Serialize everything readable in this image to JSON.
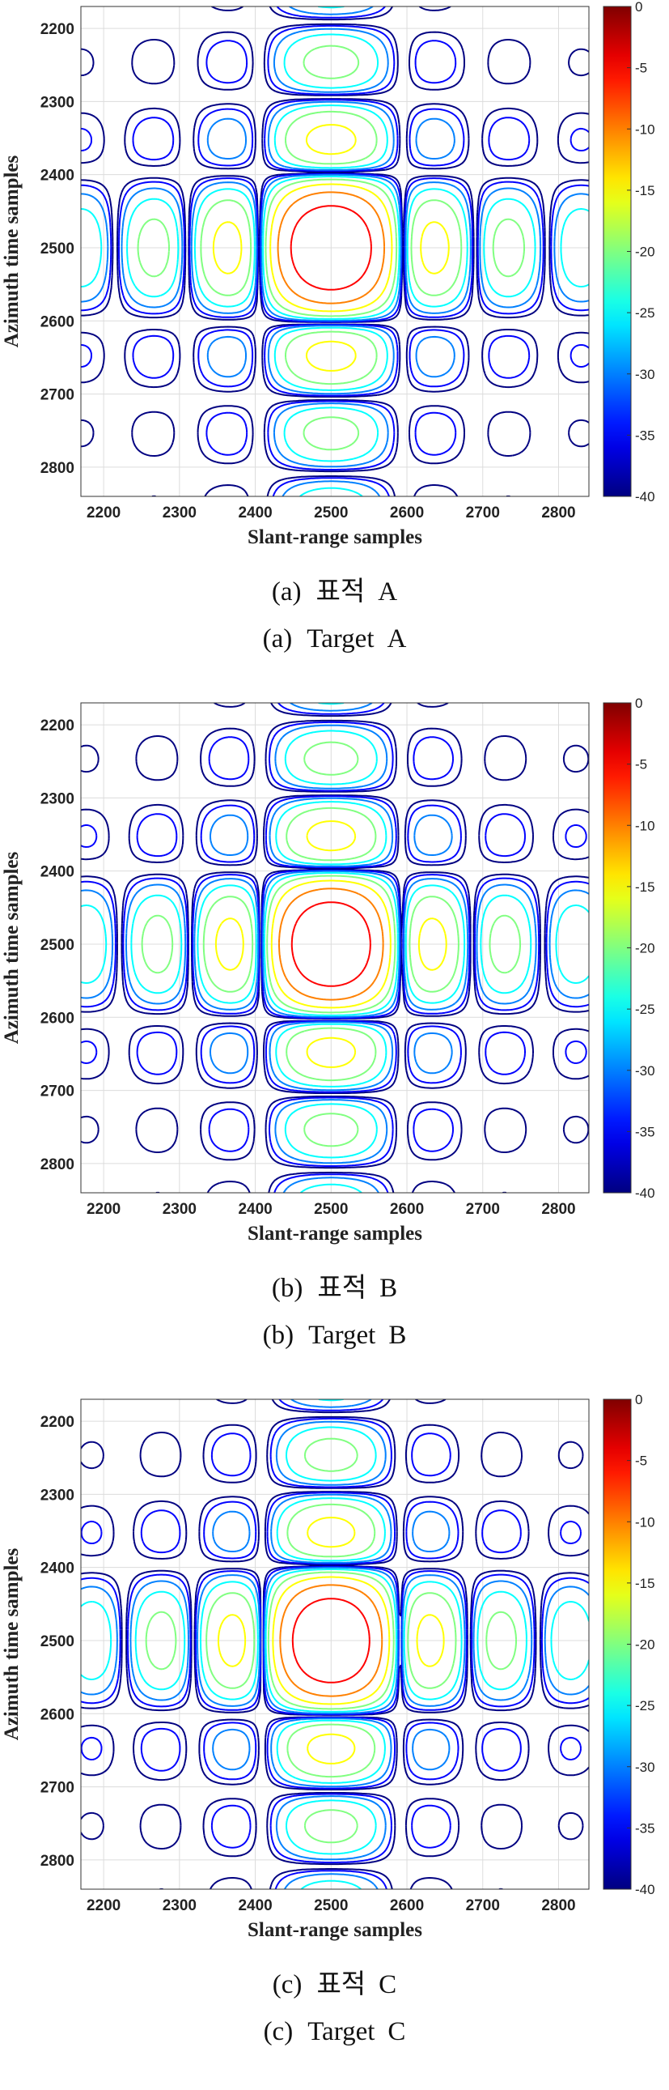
{
  "chart_data": [
    {
      "type": "contour",
      "xlabel": "Slant-range samples",
      "ylabel": "Azimuth time samples",
      "xlim": [
        2170,
        2840
      ],
      "ylim": [
        2170,
        2840
      ],
      "x_ticks": [
        2200,
        2300,
        2400,
        2500,
        2600,
        2700,
        2800
      ],
      "y_ticks": [
        2200,
        2300,
        2400,
        2500,
        2600,
        2700,
        2800
      ],
      "colorbar": {
        "min": -40,
        "max": 0,
        "ticks": [
          0,
          -5,
          -10,
          -15,
          -20,
          -25,
          -30,
          -35,
          -40
        ],
        "colormap": "jet"
      },
      "levels_db": [
        -40,
        -35,
        -30,
        -25,
        -20,
        -15,
        -10,
        -5
      ],
      "peak": {
        "x": 2500,
        "y": 2500,
        "value_db": 0
      },
      "lobe_spacing": {
        "range": 95,
        "azimuth": 103
      },
      "caption_kr": {
        "prefix": "(a)",
        "word": "표적",
        "letter": "A"
      },
      "caption_en": {
        "prefix": "(a)",
        "word": "Target",
        "letter": "A"
      }
    },
    {
      "type": "contour",
      "xlabel": "Slant-range samples",
      "ylabel": "Azimuth time samples",
      "xlim": [
        2170,
        2840
      ],
      "ylim": [
        2170,
        2840
      ],
      "x_ticks": [
        2200,
        2300,
        2400,
        2500,
        2600,
        2700,
        2800
      ],
      "y_ticks": [
        2200,
        2300,
        2400,
        2500,
        2600,
        2700,
        2800
      ],
      "colorbar": {
        "min": -40,
        "max": 0,
        "ticks": [
          0,
          -5,
          -10,
          -15,
          -20,
          -25,
          -30,
          -35,
          -40
        ],
        "colormap": "jet"
      },
      "levels_db": [
        -40,
        -35,
        -30,
        -25,
        -20,
        -15,
        -10,
        -5
      ],
      "peak": {
        "x": 2500,
        "y": 2500,
        "value_db": 0
      },
      "lobe_spacing": {
        "range": 93,
        "azimuth": 103
      },
      "caption_kr": {
        "prefix": "(b)",
        "word": "표적",
        "letter": "B"
      },
      "caption_en": {
        "prefix": "(b)",
        "word": "Target",
        "letter": "B"
      }
    },
    {
      "type": "contour",
      "xlabel": "Slant-range samples",
      "ylabel": "Azimuth time samples",
      "xlim": [
        2170,
        2840
      ],
      "ylim": [
        2170,
        2840
      ],
      "x_ticks": [
        2200,
        2300,
        2400,
        2500,
        2600,
        2700,
        2800
      ],
      "y_ticks": [
        2200,
        2300,
        2400,
        2500,
        2600,
        2700,
        2800
      ],
      "colorbar": {
        "min": -40,
        "max": 0,
        "ticks": [
          0,
          -5,
          -10,
          -15,
          -20,
          -25,
          -30,
          -35,
          -40
        ],
        "colormap": "jet"
      },
      "levels_db": [
        -40,
        -35,
        -30,
        -25,
        -20,
        -15,
        -10,
        -5
      ],
      "peak": {
        "x": 2500,
        "y": 2500,
        "value_db": 0
      },
      "lobe_spacing": {
        "range": 91,
        "azimuth": 103
      },
      "caption_kr": {
        "prefix": "(c)",
        "word": "표적",
        "letter": "C"
      },
      "caption_en": {
        "prefix": "(c)",
        "word": "Target",
        "letter": "C"
      }
    }
  ]
}
